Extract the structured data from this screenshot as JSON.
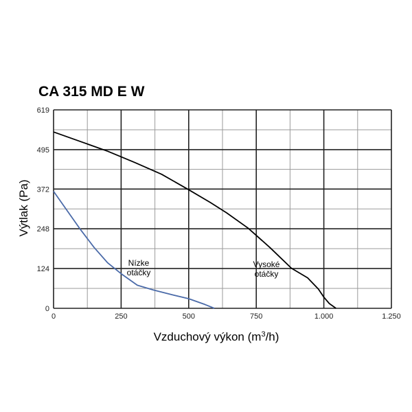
{
  "chart_data": {
    "type": "line",
    "title": "CA 315 MD E W",
    "xlabel": "Vzduchový výkon (m",
    "xlabel_sup": "3",
    "xlabel_suffix": "/h)",
    "ylabel": "Výtlak (Pa)",
    "xlim": [
      0,
      1250
    ],
    "ylim": [
      0,
      619
    ],
    "x_ticks": [
      0,
      250,
      500,
      750,
      1000,
      1250
    ],
    "x_tick_labels": [
      "0",
      "250",
      "500",
      "750",
      "1.000",
      "1.250"
    ],
    "y_ticks": [
      0,
      124,
      248,
      372,
      495,
      619
    ],
    "y_tick_labels": [
      "0",
      "124",
      "248",
      "372",
      "495",
      "619"
    ],
    "grid": true,
    "series": [
      {
        "name": "Nízke otáčky",
        "color": "#4a6aa8",
        "x": [
          0,
          50,
          100,
          150,
          200,
          250,
          310,
          370,
          440,
          500,
          560,
          595
        ],
        "y": [
          365,
          305,
          245,
          190,
          142,
          108,
          72,
          57,
          42,
          30,
          12,
          0
        ]
      },
      {
        "name": "Vysoké otáčky",
        "color": "#000000",
        "x": [
          0,
          100,
          200,
          300,
          400,
          500,
          580,
          640,
          720,
          800,
          880,
          940,
          980,
          1000,
          1020,
          1045
        ],
        "y": [
          550,
          520,
          490,
          455,
          418,
          370,
          330,
          298,
          250,
          190,
          125,
          95,
          60,
          35,
          15,
          0
        ]
      }
    ],
    "annotations": [
      {
        "text": [
          "Nízke",
          "otáčky"
        ],
        "series": "low"
      },
      {
        "text": [
          "Vysoké",
          "otáčky"
        ],
        "series": "high"
      }
    ]
  }
}
